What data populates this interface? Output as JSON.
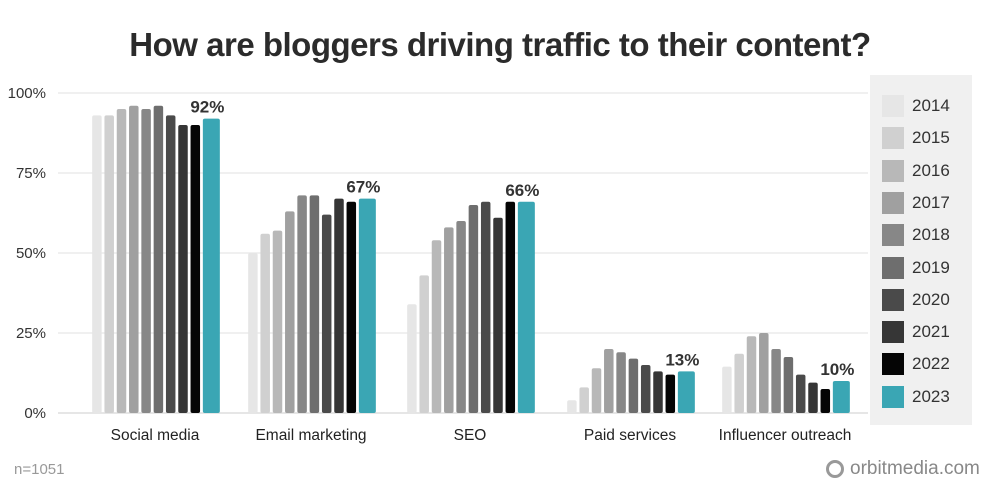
{
  "chart_data": {
    "type": "bar",
    "title": "How are bloggers driving traffic to their content?",
    "categories": [
      "Social media",
      "Email marketing",
      "SEO",
      "Paid services",
      "Influencer outreach"
    ],
    "ylim": [
      0,
      100
    ],
    "yticks": [
      "0%",
      "25%",
      "50%",
      "75%",
      "100%"
    ],
    "grid": true,
    "legend_position": "right",
    "series": [
      {
        "name": "2014",
        "color": "#e6e6e6",
        "values": [
          93,
          50,
          34,
          4,
          14.5
        ]
      },
      {
        "name": "2015",
        "color": "#d0d0d0",
        "values": [
          93,
          56,
          43,
          8,
          18.5
        ]
      },
      {
        "name": "2016",
        "color": "#b8b8b8",
        "values": [
          95,
          57,
          54,
          14,
          24
        ]
      },
      {
        "name": "2017",
        "color": "#a0a0a0",
        "values": [
          96,
          63,
          58,
          20,
          25
        ]
      },
      {
        "name": "2018",
        "color": "#878787",
        "values": [
          95,
          68,
          60,
          19,
          20
        ]
      },
      {
        "name": "2019",
        "color": "#6e6e6e",
        "values": [
          96,
          68,
          65,
          17,
          17.5
        ]
      },
      {
        "name": "2020",
        "color": "#4a4a4a",
        "values": [
          93,
          62,
          66,
          15,
          12
        ]
      },
      {
        "name": "2021",
        "color": "#363636",
        "values": [
          90,
          67,
          61,
          13,
          9.5
        ]
      },
      {
        "name": "2022",
        "color": "#050505",
        "values": [
          90,
          66,
          66,
          12,
          7.5
        ]
      },
      {
        "name": "2023",
        "color": "#3aa6b4",
        "values": [
          92,
          67,
          66,
          13,
          10
        ]
      }
    ],
    "data_labels": [
      "92%",
      "67%",
      "66%",
      "13%",
      "10%"
    ]
  },
  "footer": {
    "sample": "n=1051",
    "brand": "orbitmedia.com"
  }
}
